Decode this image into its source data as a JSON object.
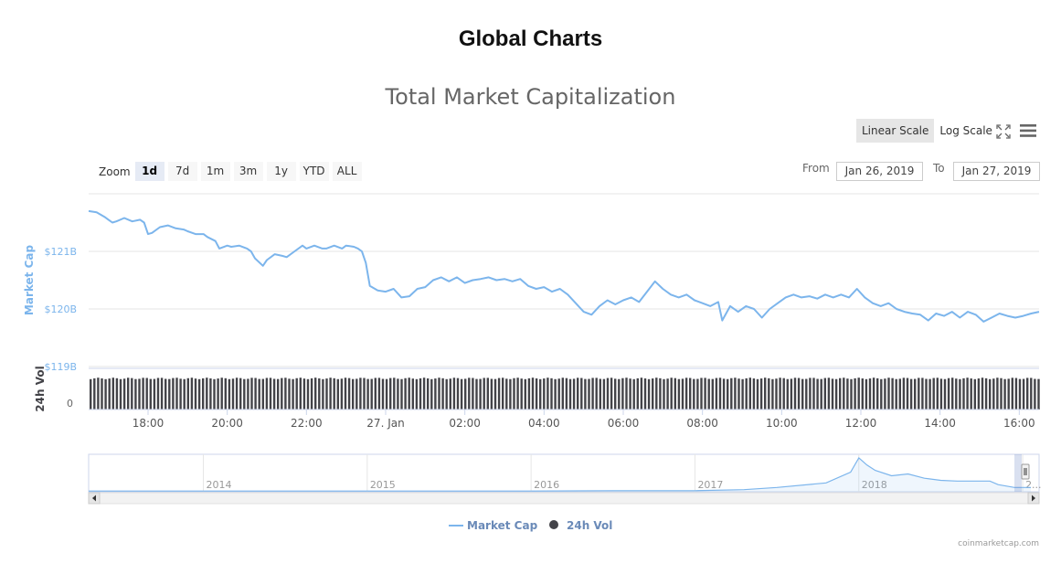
{
  "page": {
    "title": "Global Charts",
    "credit": "coinmarketcap.com"
  },
  "controls": {
    "scale_buttons": [
      {
        "label": "Linear Scale",
        "active": true
      },
      {
        "label": "Log Scale",
        "active": false
      }
    ],
    "zoom_label": "Zoom",
    "zoom_buttons": [
      {
        "label": "1d",
        "active": true
      },
      {
        "label": "7d",
        "active": false
      },
      {
        "label": "1m",
        "active": false
      },
      {
        "label": "3m",
        "active": false
      },
      {
        "label": "1y",
        "active": false
      },
      {
        "label": "YTD",
        "active": false
      },
      {
        "label": "ALL",
        "active": false
      }
    ],
    "from_label": "From",
    "from_value": "Jan 26, 2019",
    "to_label": "To",
    "to_value": "Jan 27, 2019",
    "icons": [
      "fullscreen-icon",
      "menu-icon"
    ]
  },
  "chart_data": {
    "type": "line",
    "title": "Total Market Capitalization",
    "ylabel": "Market Cap",
    "yticks": [
      "$121B",
      "$120B",
      "$119B"
    ],
    "ytick_values": [
      121,
      120,
      119
    ],
    "ylim": [
      119,
      122
    ],
    "xticks": [
      "18:00",
      "20:00",
      "22:00",
      "27. Jan",
      "02:00",
      "04:00",
      "06:00",
      "08:00",
      "10:00",
      "12:00",
      "14:00",
      "16:00"
    ],
    "xtick_hours": [
      18,
      20,
      22,
      24,
      26,
      28,
      30,
      32,
      34,
      36,
      38,
      40
    ],
    "x_range_hours": [
      16.5,
      40.5
    ],
    "colors": {
      "market_cap": "#7cb5ec",
      "volume": "#434348",
      "grid": "#e6e6e6"
    },
    "market_cap": [
      [
        16.5,
        121.7
      ],
      [
        16.7,
        121.68
      ],
      [
        16.9,
        121.6
      ],
      [
        17.0,
        121.55
      ],
      [
        17.1,
        121.5
      ],
      [
        17.2,
        121.52
      ],
      [
        17.4,
        121.58
      ],
      [
        17.6,
        121.52
      ],
      [
        17.8,
        121.55
      ],
      [
        17.9,
        121.5
      ],
      [
        18.0,
        121.3
      ],
      [
        18.1,
        121.32
      ],
      [
        18.3,
        121.42
      ],
      [
        18.5,
        121.45
      ],
      [
        18.7,
        121.4
      ],
      [
        18.9,
        121.38
      ],
      [
        19.0,
        121.35
      ],
      [
        19.2,
        121.3
      ],
      [
        19.4,
        121.3
      ],
      [
        19.5,
        121.25
      ],
      [
        19.7,
        121.18
      ],
      [
        19.8,
        121.05
      ],
      [
        20.0,
        121.1
      ],
      [
        20.1,
        121.08
      ],
      [
        20.3,
        121.1
      ],
      [
        20.5,
        121.05
      ],
      [
        20.6,
        121.0
      ],
      [
        20.7,
        120.88
      ],
      [
        20.9,
        120.75
      ],
      [
        21.0,
        120.85
      ],
      [
        21.2,
        120.95
      ],
      [
        21.4,
        120.92
      ],
      [
        21.5,
        120.9
      ],
      [
        21.7,
        121.0
      ],
      [
        21.9,
        121.1
      ],
      [
        22.0,
        121.05
      ],
      [
        22.2,
        121.1
      ],
      [
        22.4,
        121.05
      ],
      [
        22.5,
        121.05
      ],
      [
        22.7,
        121.1
      ],
      [
        22.9,
        121.05
      ],
      [
        23.0,
        121.1
      ],
      [
        23.2,
        121.08
      ],
      [
        23.3,
        121.05
      ],
      [
        23.4,
        121.0
      ],
      [
        23.5,
        120.8
      ],
      [
        23.6,
        120.4
      ],
      [
        23.8,
        120.32
      ],
      [
        24.0,
        120.3
      ],
      [
        24.2,
        120.35
      ],
      [
        24.4,
        120.2
      ],
      [
        24.6,
        120.22
      ],
      [
        24.8,
        120.35
      ],
      [
        25.0,
        120.38
      ],
      [
        25.2,
        120.5
      ],
      [
        25.4,
        120.55
      ],
      [
        25.6,
        120.48
      ],
      [
        25.8,
        120.55
      ],
      [
        26.0,
        120.45
      ],
      [
        26.2,
        120.5
      ],
      [
        26.4,
        120.52
      ],
      [
        26.6,
        120.55
      ],
      [
        26.8,
        120.5
      ],
      [
        27.0,
        120.52
      ],
      [
        27.2,
        120.48
      ],
      [
        27.4,
        120.52
      ],
      [
        27.6,
        120.4
      ],
      [
        27.8,
        120.35
      ],
      [
        28.0,
        120.38
      ],
      [
        28.2,
        120.3
      ],
      [
        28.4,
        120.35
      ],
      [
        28.6,
        120.25
      ],
      [
        28.8,
        120.1
      ],
      [
        29.0,
        119.95
      ],
      [
        29.2,
        119.9
      ],
      [
        29.4,
        120.05
      ],
      [
        29.6,
        120.15
      ],
      [
        29.8,
        120.08
      ],
      [
        30.0,
        120.15
      ],
      [
        30.2,
        120.2
      ],
      [
        30.4,
        120.12
      ],
      [
        30.6,
        120.3
      ],
      [
        30.8,
        120.48
      ],
      [
        31.0,
        120.35
      ],
      [
        31.2,
        120.25
      ],
      [
        31.4,
        120.2
      ],
      [
        31.6,
        120.25
      ],
      [
        31.8,
        120.15
      ],
      [
        32.0,
        120.1
      ],
      [
        32.2,
        120.05
      ],
      [
        32.4,
        120.12
      ],
      [
        32.5,
        119.8
      ],
      [
        32.7,
        120.05
      ],
      [
        32.9,
        119.95
      ],
      [
        33.1,
        120.05
      ],
      [
        33.3,
        120.0
      ],
      [
        33.5,
        119.85
      ],
      [
        33.7,
        120.0
      ],
      [
        33.9,
        120.1
      ],
      [
        34.1,
        120.2
      ],
      [
        34.3,
        120.25
      ],
      [
        34.5,
        120.2
      ],
      [
        34.7,
        120.22
      ],
      [
        34.9,
        120.18
      ],
      [
        35.1,
        120.25
      ],
      [
        35.3,
        120.2
      ],
      [
        35.5,
        120.25
      ],
      [
        35.7,
        120.2
      ],
      [
        35.9,
        120.35
      ],
      [
        36.1,
        120.2
      ],
      [
        36.3,
        120.1
      ],
      [
        36.5,
        120.05
      ],
      [
        36.7,
        120.1
      ],
      [
        36.9,
        120.0
      ],
      [
        37.1,
        119.95
      ],
      [
        37.3,
        119.92
      ],
      [
        37.5,
        119.9
      ],
      [
        37.7,
        119.8
      ],
      [
        37.9,
        119.92
      ],
      [
        38.1,
        119.88
      ],
      [
        38.3,
        119.95
      ],
      [
        38.5,
        119.85
      ],
      [
        38.7,
        119.95
      ],
      [
        38.9,
        119.9
      ],
      [
        39.1,
        119.78
      ],
      [
        39.3,
        119.85
      ],
      [
        39.5,
        119.92
      ],
      [
        39.7,
        119.88
      ],
      [
        39.9,
        119.85
      ],
      [
        40.1,
        119.88
      ],
      [
        40.3,
        119.92
      ],
      [
        40.5,
        119.95
      ]
    ],
    "volume_label": "24h Vol",
    "volume_ytick": "0",
    "navigator": {
      "labels": [
        "2014",
        "2015",
        "2016",
        "2017",
        "2018",
        "2..."
      ],
      "label_years": [
        2014,
        2015,
        2016,
        2017,
        2018,
        2019
      ],
      "x_range_years": [
        2013.3,
        2019.1
      ],
      "series": [
        [
          2013.3,
          0.02
        ],
        [
          2014.0,
          0.02
        ],
        [
          2014.5,
          0.02
        ],
        [
          2015.0,
          0.02
        ],
        [
          2016.0,
          0.02
        ],
        [
          2016.5,
          0.03
        ],
        [
          2017.0,
          0.03
        ],
        [
          2017.3,
          0.06
        ],
        [
          2017.5,
          0.12
        ],
        [
          2017.8,
          0.25
        ],
        [
          2017.95,
          0.55
        ],
        [
          2018.0,
          0.95
        ],
        [
          2018.05,
          0.75
        ],
        [
          2018.1,
          0.6
        ],
        [
          2018.2,
          0.45
        ],
        [
          2018.3,
          0.5
        ],
        [
          2018.4,
          0.38
        ],
        [
          2018.5,
          0.32
        ],
        [
          2018.6,
          0.3
        ],
        [
          2018.8,
          0.3
        ],
        [
          2018.85,
          0.2
        ],
        [
          2018.95,
          0.12
        ],
        [
          2019.05,
          0.12
        ]
      ]
    },
    "legend": [
      {
        "name": "Market Cap",
        "marker": "line"
      },
      {
        "name": "24h Vol",
        "marker": "circle"
      }
    ],
    "legend_position": "bottom-center",
    "grid": true
  }
}
